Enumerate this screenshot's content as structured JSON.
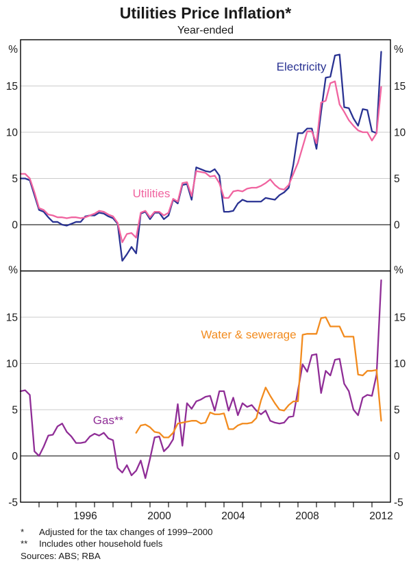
{
  "page": {
    "title": "Utilities Price Inflation*",
    "subtitle": "Year-ended"
  },
  "footnotes": [
    {
      "marker": "*",
      "text": "Adjusted for the tax changes of 1999–2000"
    },
    {
      "marker": "**",
      "text": "Includes other household fuels"
    }
  ],
  "sources": "Sources: ABS; RBA",
  "colors": {
    "electricity": "#293292",
    "utilities": "#f0639f",
    "gas": "#8f2d96",
    "water_sewerage": "#f28b1e",
    "gridline": "#cbcbcb",
    "zero_line": "#4d4d4d",
    "frame": "#000000",
    "text": "#1a1a1a"
  },
  "chart_data": {
    "type": "line",
    "title": "Utilities Price Inflation*",
    "subtitle": "Year-ended",
    "unit": "%",
    "frequency": "quarterly",
    "x_start": 1993.0,
    "x_step": 0.25,
    "x_axis": {
      "range": [
        1993,
        2013
      ],
      "tick_every_years": 1,
      "labeled_years": [
        1996,
        2000,
        2004,
        2008,
        2012
      ]
    },
    "y_axis": {
      "range": [
        -5,
        20
      ],
      "gridlines": [
        5,
        10,
        15
      ],
      "zero_line": true,
      "unit_symbol": "%"
    },
    "panels": [
      {
        "id": "top",
        "y_tick_labels": [
          15,
          10,
          5,
          0
        ],
        "series": [
          {
            "name": "Electricity",
            "color": "#293292",
            "label": {
              "text": "Electricity",
              "x": 440,
              "y": 103
            },
            "values": [
              5.0,
              5.0,
              4.8,
              3.2,
              1.6,
              1.4,
              0.8,
              0.3,
              0.3,
              0.0,
              -0.1,
              0.1,
              0.3,
              0.3,
              0.9,
              1.0,
              1.0,
              1.3,
              1.2,
              0.9,
              0.7,
              0.1,
              -3.9,
              -3.2,
              -2.4,
              -3.1,
              1.2,
              1.4,
              0.6,
              1.3,
              1.3,
              0.6,
              1.0,
              2.7,
              2.3,
              4.3,
              4.4,
              2.7,
              6.2,
              6.0,
              5.8,
              5.7,
              6.0,
              5.3,
              1.4,
              1.4,
              1.5,
              2.3,
              2.7,
              2.5,
              2.5,
              2.5,
              2.5,
              2.9,
              2.8,
              2.7,
              3.2,
              3.5,
              4.0,
              6.5,
              9.9,
              9.9,
              10.4,
              10.4,
              8.2,
              12.2,
              15.9,
              16.0,
              18.3,
              18.4,
              12.7,
              12.6,
              11.5,
              10.7,
              12.5,
              12.4,
              10.1,
              9.9,
              18.7
            ]
          },
          {
            "name": "Utilities",
            "color": "#f0639f",
            "label": {
              "text": "Utilities",
              "x": 221,
              "y": 288
            },
            "values": [
              5.5,
              5.5,
              5.0,
              3.5,
              1.8,
              1.6,
              1.1,
              1.0,
              0.8,
              0.8,
              0.7,
              0.8,
              0.8,
              0.7,
              0.8,
              1.0,
              1.2,
              1.5,
              1.4,
              1.1,
              0.9,
              0.2,
              -1.9,
              -1.0,
              -0.9,
              -1.4,
              1.3,
              1.5,
              0.8,
              1.4,
              1.4,
              1.0,
              1.3,
              2.8,
              2.5,
              4.5,
              4.6,
              3.1,
              5.8,
              5.7,
              5.6,
              5.2,
              5.3,
              4.5,
              2.9,
              2.9,
              3.6,
              3.7,
              3.6,
              3.9,
              4.0,
              4.0,
              4.2,
              4.5,
              4.9,
              4.3,
              3.9,
              3.8,
              4.3,
              5.5,
              6.7,
              8.4,
              10.1,
              10.1,
              8.8,
              13.2,
              13.4,
              15.3,
              15.5,
              13.0,
              12.2,
              11.3,
              10.7,
              10.2,
              10.0,
              10.0,
              9.1,
              9.9,
              14.9
            ]
          }
        ]
      },
      {
        "id": "bottom",
        "y_tick_labels": [
          15,
          10,
          5,
          0,
          -5
        ],
        "series": [
          {
            "name": "Gas**",
            "color": "#8f2d96",
            "label": {
              "text": "Gas**",
              "x": 158,
              "y": 619
            },
            "values": [
              7.0,
              7.1,
              6.6,
              0.5,
              0.0,
              1.0,
              2.2,
              2.3,
              3.2,
              3.5,
              2.6,
              2.1,
              1.4,
              1.4,
              1.5,
              2.1,
              2.4,
              2.2,
              2.5,
              1.9,
              1.7,
              -1.3,
              -1.8,
              -1.0,
              -2.1,
              -1.6,
              -0.5,
              -2.4,
              -0.3,
              2.0,
              2.1,
              0.5,
              1.0,
              1.8,
              5.6,
              1.1,
              5.7,
              5.1,
              5.9,
              6.1,
              6.4,
              6.5,
              4.9,
              7.0,
              7.0,
              4.9,
              6.3,
              4.4,
              5.7,
              5.3,
              5.5,
              4.9,
              4.5,
              4.9,
              3.8,
              3.6,
              3.5,
              3.6,
              4.2,
              4.3,
              7.1,
              9.9,
              9.1,
              10.9,
              11.0,
              6.8,
              9.2,
              8.7,
              10.4,
              10.5,
              7.8,
              7.0,
              5.0,
              4.4,
              6.3,
              6.6,
              6.5,
              8.8,
              19.0
            ]
          },
          {
            "name": "Water & sewerage",
            "color": "#f28b1e",
            "label": {
              "text": "Water & sewerage",
              "x": 363,
              "y": 494
            },
            "values": [
              null,
              null,
              null,
              null,
              null,
              null,
              null,
              null,
              null,
              null,
              null,
              null,
              null,
              null,
              null,
              null,
              null,
              null,
              null,
              null,
              null,
              null,
              null,
              null,
              null,
              2.5,
              3.3,
              3.4,
              3.1,
              2.6,
              2.5,
              2.0,
              2.0,
              2.5,
              3.5,
              3.6,
              3.7,
              3.8,
              3.8,
              3.5,
              3.6,
              4.7,
              4.5,
              4.5,
              4.6,
              2.9,
              2.9,
              3.3,
              3.5,
              3.5,
              3.6,
              4.1,
              6.0,
              7.4,
              6.5,
              5.7,
              5.0,
              4.9,
              5.5,
              5.9,
              5.9,
              13.1,
              13.2,
              13.2,
              13.2,
              14.9,
              15.0,
              14.0,
              14.0,
              14.0,
              12.9,
              12.9,
              12.9,
              8.8,
              8.7,
              9.2,
              9.2,
              9.3,
              3.8
            ]
          }
        ]
      }
    ]
  }
}
